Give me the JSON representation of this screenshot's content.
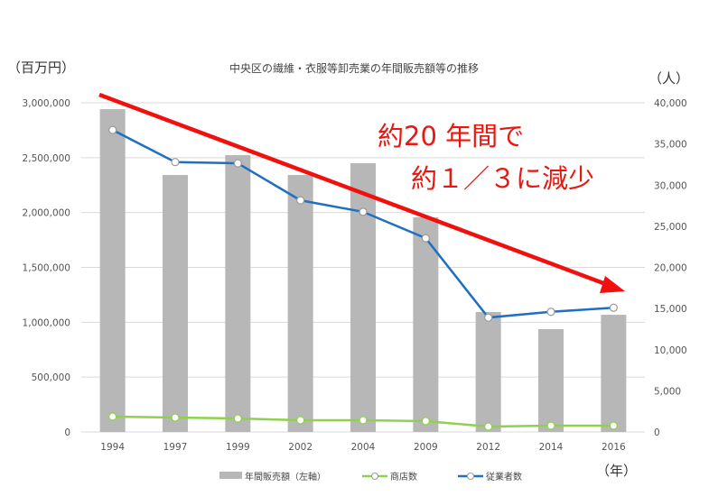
{
  "chart_data": {
    "type": "bar+line",
    "title": "中央区の繊維・衣服等卸売業の年間販売額等の推移",
    "left_unit": "（百万円）",
    "right_unit": "（人）",
    "x_unit": "（年）",
    "categories": [
      "1994",
      "1997",
      "1999",
      "2002",
      "2004",
      "2009",
      "2012",
      "2014",
      "2016"
    ],
    "left_axis": {
      "range": [
        0,
        3000000
      ],
      "ticks": [
        "0",
        "500,000",
        "1,000,000",
        "1,500,000",
        "2,000,000",
        "2,500,000",
        "3,000,000"
      ]
    },
    "right_axis": {
      "range": [
        0,
        40000
      ],
      "ticks": [
        "0",
        "5,000",
        "10,000",
        "15,000",
        "20,000",
        "25,000",
        "30,000",
        "35,000",
        "40,000"
      ]
    },
    "series": [
      {
        "name": "年間販売額（左軸）",
        "type": "bar",
        "axis": "left",
        "color": "#b7b7b7",
        "values": [
          2942000,
          2342000,
          2523000,
          2342000,
          2449000,
          1956000,
          1093000,
          937000,
          1068000
        ]
      },
      {
        "name": "商店数",
        "type": "line",
        "axis": "right",
        "color": "#8fd14f",
        "values": [
          1860,
          1750,
          1640,
          1430,
          1430,
          1320,
          660,
          770,
          770
        ]
      },
      {
        "name": "従業者数",
        "type": "line",
        "axis": "right",
        "color": "#1f6fc5",
        "values": [
          36700,
          32800,
          32650,
          28150,
          26750,
          23550,
          13900,
          14600,
          15100
        ]
      }
    ],
    "grid": "horizontal",
    "legend": "bottom",
    "annotation": {
      "line1": "約20 年間で",
      "line2": "約１／３に減少",
      "color": "#e8170f",
      "arrow": "red downward trend arrow"
    }
  }
}
